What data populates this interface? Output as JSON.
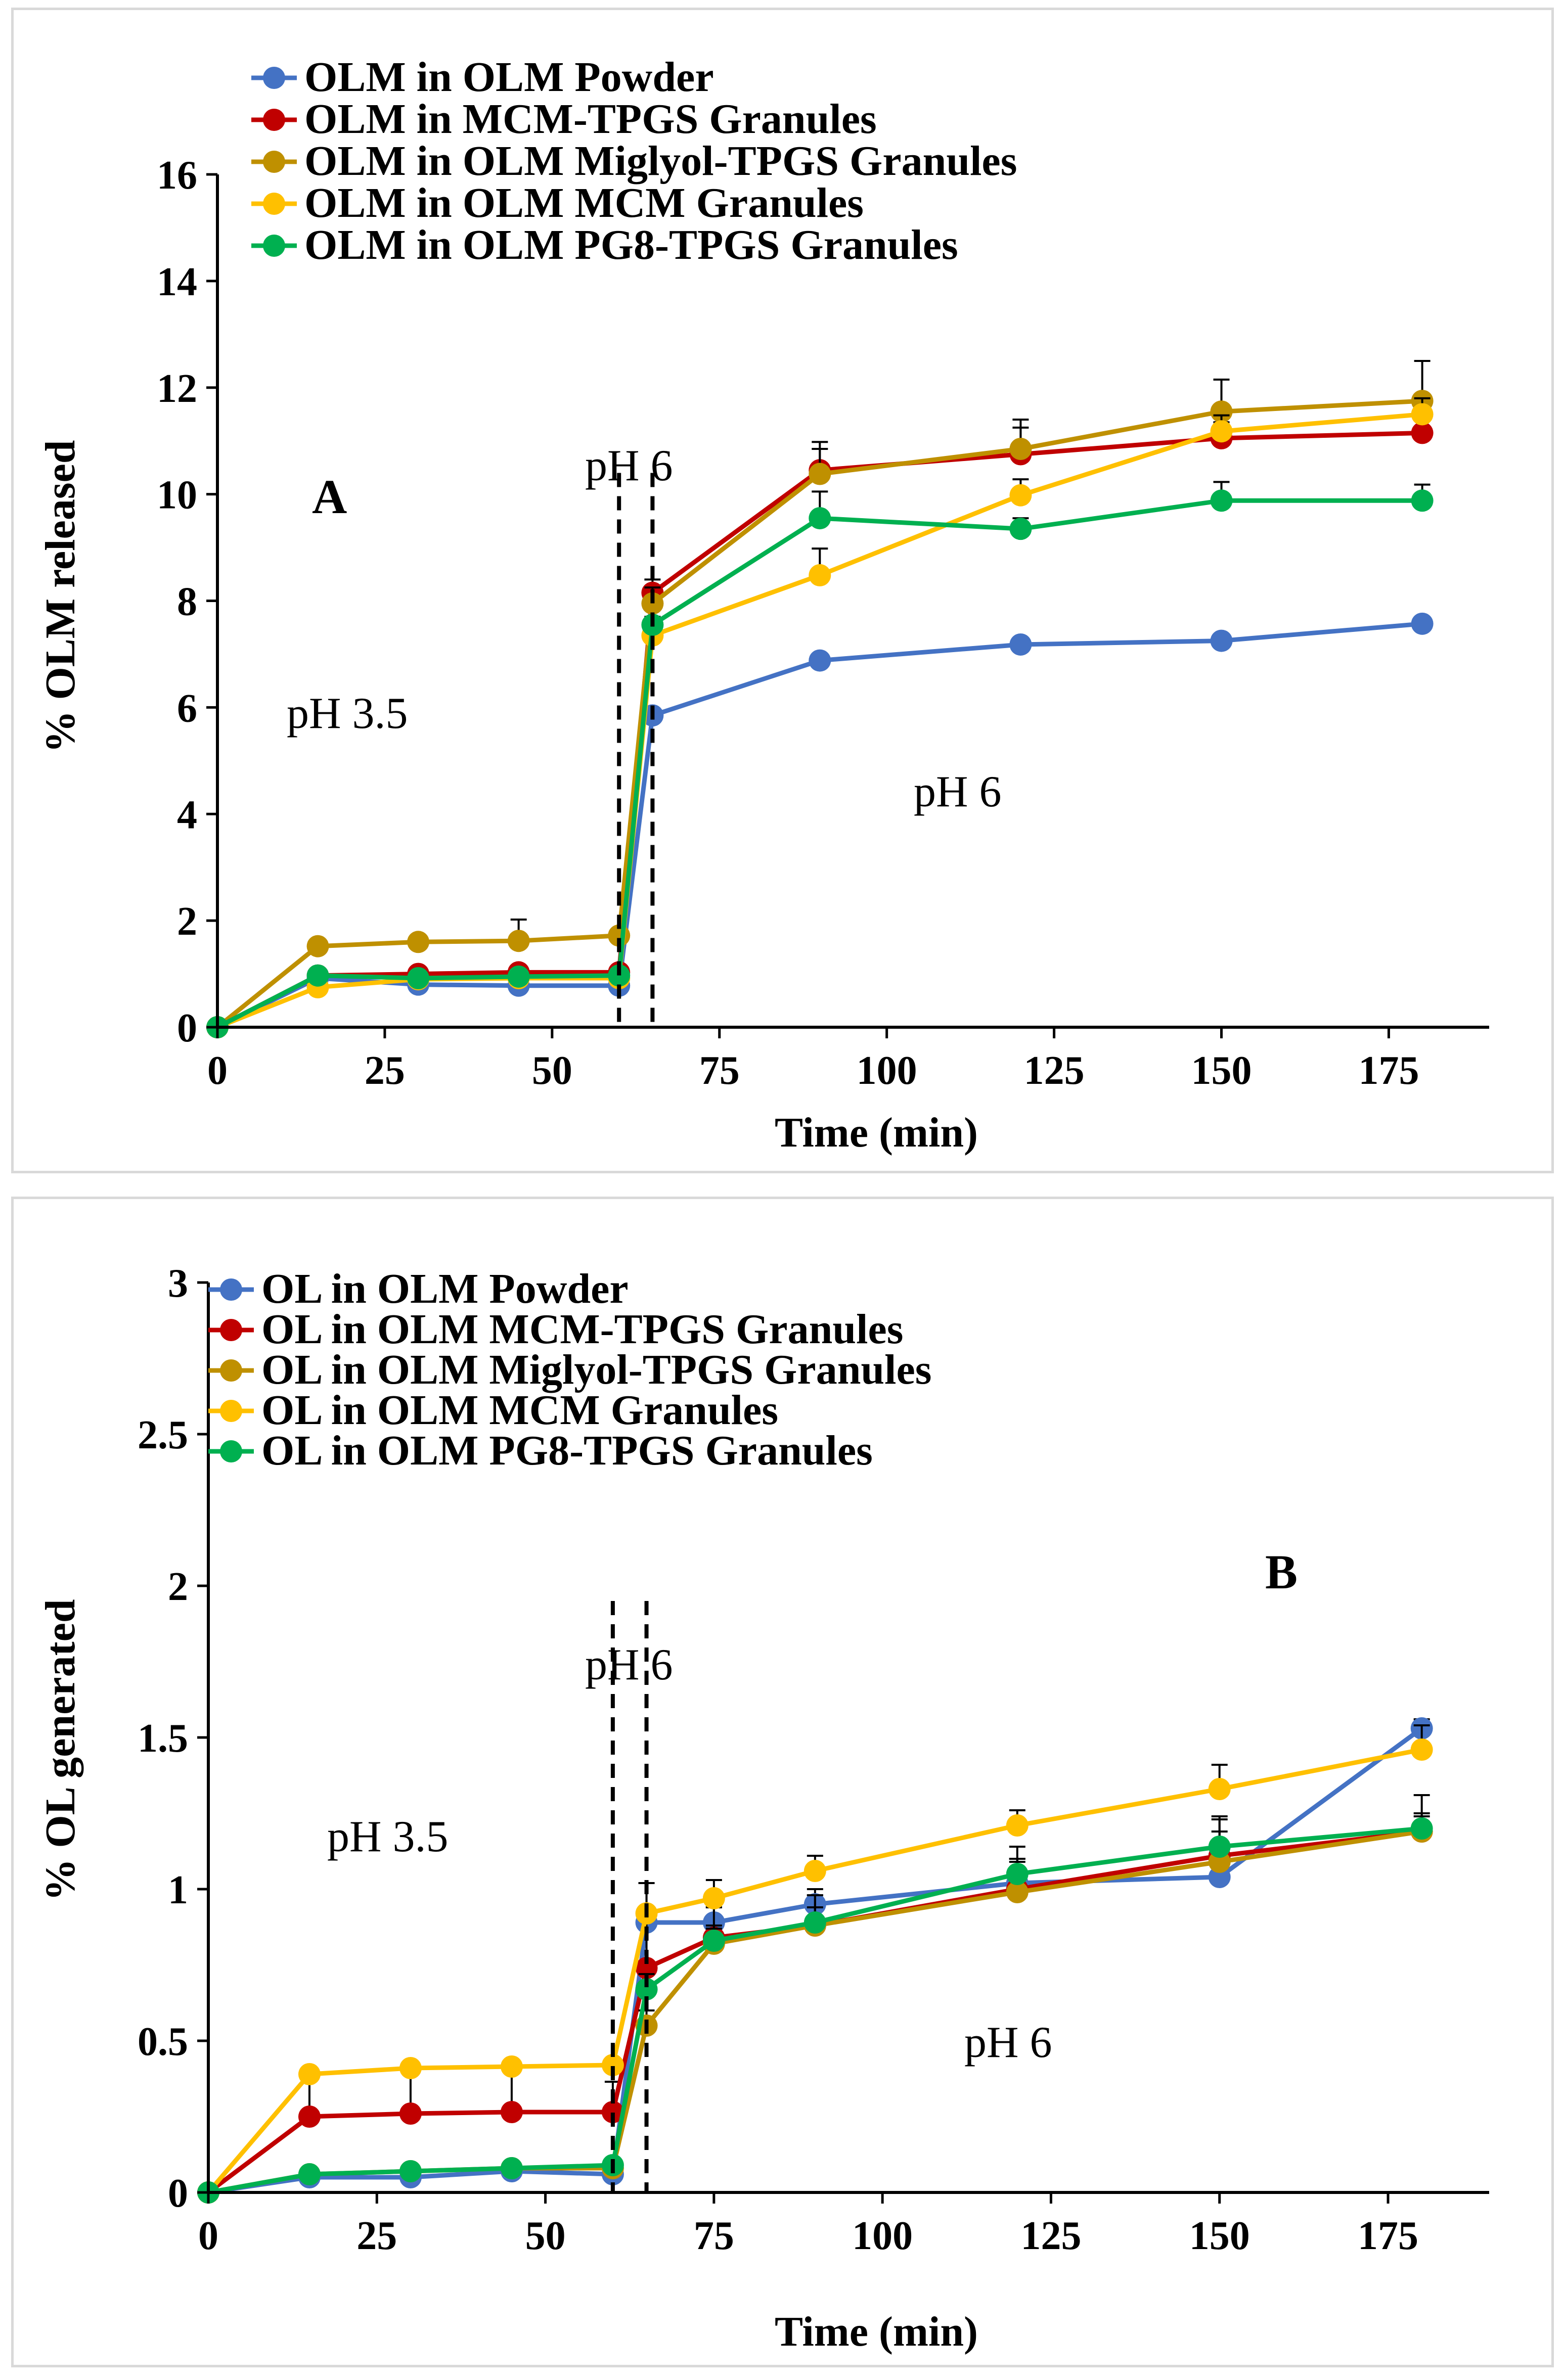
{
  "chart_data": [
    {
      "type": "line",
      "panel_label": "A",
      "xlabel": "Time (min)",
      "ylabel": "% OLM released",
      "xlim": [
        0,
        190
      ],
      "ylim": [
        0,
        16
      ],
      "xticks": [
        "0",
        "25",
        "50",
        "75",
        "100",
        "125",
        "150",
        "175"
      ],
      "yticks": [
        "0",
        "2",
        "4",
        "6",
        "8",
        "10",
        "12",
        "14",
        "16"
      ],
      "x": [
        0,
        15,
        30,
        45,
        60,
        65,
        90,
        120,
        150,
        180
      ],
      "phase_lines_x": [
        60,
        65
      ],
      "annotations": [
        "pH 3.5",
        "pH 6",
        "pH 6"
      ],
      "legend_position": "top-left",
      "series": [
        {
          "name": "OLM in OLM Powder",
          "color": "#4472c4",
          "values": [
            0,
            0.92,
            0.8,
            0.78,
            0.78,
            5.85,
            6.88,
            7.18,
            7.25,
            7.57
          ],
          "errors": [
            0,
            0.05,
            0.05,
            0.05,
            0.05,
            0.1,
            0.1,
            0.1,
            0.1,
            0.1
          ]
        },
        {
          "name": "OLM in MCM-TPGS Granules",
          "color": "#c00000",
          "values": [
            0,
            0.97,
            1.0,
            1.03,
            1.03,
            8.15,
            10.45,
            10.75,
            11.05,
            11.15
          ],
          "errors": [
            0,
            0.05,
            0.05,
            0.05,
            0.05,
            0.25,
            0.4,
            0.5,
            0.3,
            0.25
          ]
        },
        {
          "name": "OLM in OLM Miglyol-TPGS Granules",
          "color": "#bf9000",
          "values": [
            0,
            1.52,
            1.6,
            1.62,
            1.72,
            7.95,
            10.38,
            10.85,
            11.55,
            11.75
          ],
          "errors": [
            0,
            0.05,
            0.05,
            0.4,
            0.05,
            0.3,
            0.6,
            0.55,
            0.6,
            0.75
          ]
        },
        {
          "name": "OLM in OLM MCM Granules",
          "color": "#ffc000",
          "values": [
            0,
            0.75,
            0.9,
            0.92,
            0.92,
            7.35,
            8.48,
            9.98,
            11.18,
            11.5
          ],
          "errors": [
            0,
            0.05,
            0.05,
            0.05,
            0.05,
            0.15,
            0.5,
            0.3,
            0.3,
            0.3
          ]
        },
        {
          "name": "OLM in OLM PG8-TPGS Granules",
          "color": "#00b050",
          "values": [
            0,
            0.97,
            0.92,
            0.95,
            0.97,
            7.55,
            9.55,
            9.35,
            9.88,
            9.88
          ],
          "errors": [
            0,
            0.05,
            0.05,
            0.05,
            0.05,
            0.15,
            0.5,
            0.2,
            0.35,
            0.3
          ]
        }
      ]
    },
    {
      "type": "line",
      "panel_label": "B",
      "xlabel": "Time (min)",
      "ylabel": "% OL generated",
      "xlim": [
        0,
        190
      ],
      "ylim": [
        0,
        3
      ],
      "xticks": [
        "0",
        "25",
        "50",
        "75",
        "100",
        "125",
        "150",
        "175"
      ],
      "yticks": [
        "0",
        "0.5",
        "1",
        "1.5",
        "2",
        "2.5",
        "3"
      ],
      "x": [
        0,
        15,
        30,
        45,
        60,
        65,
        75,
        90,
        120,
        150,
        180
      ],
      "phase_lines_x": [
        60,
        65
      ],
      "annotations": [
        "pH 3.5",
        "pH 6",
        "pH 6"
      ],
      "legend_position": "top-left",
      "series": [
        {
          "name": "OL in OLM Powder",
          "color": "#4472c4",
          "values": [
            0,
            0.05,
            0.05,
            0.07,
            0.06,
            0.89,
            0.89,
            0.95,
            1.02,
            1.04,
            1.53
          ],
          "errors": [
            0,
            0.01,
            0.01,
            0.01,
            0.01,
            0.05,
            0.05,
            0.05,
            0.12,
            0.2,
            0.03
          ]
        },
        {
          "name": "OL in OLM MCM-TPGS Granules",
          "color": "#c00000",
          "values": [
            0,
            0.25,
            0.26,
            0.265,
            0.265,
            0.74,
            0.84,
            0.88,
            1.0,
            1.11,
            1.19
          ],
          "errors": [
            0,
            0.13,
            0.13,
            0.13,
            0.1,
            0.28,
            0.1,
            0.1,
            0.1,
            0.12,
            0.12
          ]
        },
        {
          "name": "OL in OLM Miglyol-TPGS Granules",
          "color": "#bf9000",
          "values": [
            0,
            0.06,
            0.07,
            0.08,
            0.08,
            0.55,
            0.82,
            0.88,
            0.99,
            1.09,
            1.19
          ],
          "errors": [
            0,
            0.01,
            0.01,
            0.01,
            0.01,
            0.05,
            0.05,
            0.1,
            0.1,
            0.05,
            0.05
          ]
        },
        {
          "name": "OL in OLM MCM Granules",
          "color": "#ffc000",
          "values": [
            0,
            0.39,
            0.41,
            0.415,
            0.42,
            0.92,
            0.97,
            1.06,
            1.21,
            1.33,
            1.46
          ],
          "errors": [
            0,
            0.02,
            0.02,
            0.02,
            0.02,
            0.1,
            0.06,
            0.05,
            0.05,
            0.08,
            0.08
          ]
        },
        {
          "name": "OL in OLM PG8-TPGS Granules",
          "color": "#00b050",
          "values": [
            0,
            0.06,
            0.07,
            0.08,
            0.09,
            0.67,
            0.83,
            0.89,
            1.05,
            1.14,
            1.2
          ],
          "errors": [
            0,
            0.01,
            0.01,
            0.01,
            0.01,
            0.05,
            0.05,
            0.05,
            0.05,
            0.05,
            0.05
          ]
        }
      ]
    }
  ]
}
